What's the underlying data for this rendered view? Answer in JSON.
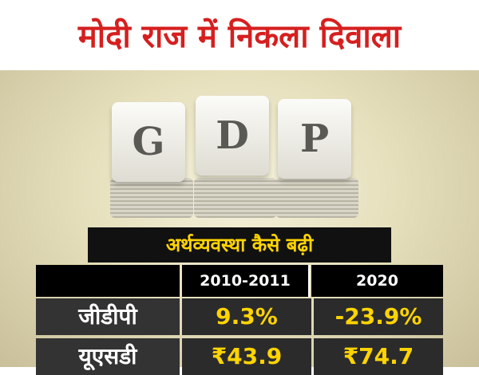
{
  "header": {
    "title": "मोदी राज में निकला दिवाला"
  },
  "image": {
    "letters": [
      "G",
      "D",
      "P"
    ]
  },
  "table": {
    "title": "अर्थव्यवस्था कैसे बढ़ी",
    "columns": [
      "2010-2011",
      "2020"
    ],
    "rows": [
      [
        "जीडीपी",
        "9.3%",
        "-23.9%"
      ],
      [
        "यूएसडी",
        "₹43.9",
        "₹74.7"
      ]
    ]
  }
}
